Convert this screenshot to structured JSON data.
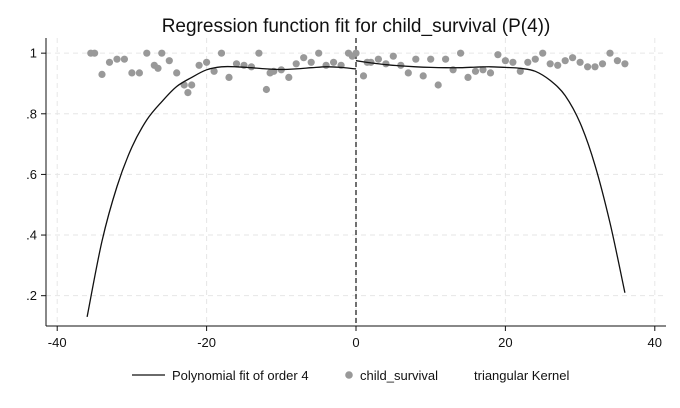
{
  "chart_data": {
    "type": "scatter",
    "title": "Regression function fit for child_survival (P(4))",
    "xlabel": "",
    "ylabel": "",
    "xlim": [
      -41.5,
      41.5
    ],
    "ylim": [
      0.1,
      1.05
    ],
    "xticks": [
      -40,
      -20,
      0,
      20,
      40
    ],
    "yticks": [
      0.2,
      0.4,
      0.6,
      0.8,
      1
    ],
    "ytick_labels": [
      ".2",
      ".4",
      ".6",
      ".8",
      "1"
    ],
    "grid": true,
    "cutoff": 0,
    "legend_position": "bottom",
    "colors": {
      "points": "#999999",
      "fit": "#111111",
      "grid": "#e6e6e6",
      "axis": "#111111"
    },
    "series": [
      {
        "name": "child_survival",
        "kind": "points",
        "x": [
          -35.5,
          -35,
          -34,
          -33,
          -32,
          -31,
          -30,
          -29,
          -28,
          -27,
          -26.5,
          -26,
          -25,
          -24,
          -23,
          -22.5,
          -22,
          -21,
          -20,
          -19,
          -18,
          -17,
          -16,
          -15,
          -14,
          -13,
          -12,
          -11.5,
          -11,
          -10,
          -9,
          -8,
          -7,
          -6,
          -5,
          -4,
          -3,
          -2,
          -1,
          0,
          -0.5,
          1,
          1.5,
          2,
          3,
          4,
          5,
          6,
          7,
          8,
          9,
          10,
          11,
          12,
          13,
          14,
          15,
          16,
          17,
          18,
          19,
          20,
          21,
          22,
          23,
          24,
          25,
          26,
          27,
          28,
          29,
          30,
          31,
          32,
          33,
          34,
          35,
          36
        ],
        "y": [
          1.0,
          1.0,
          0.93,
          0.97,
          0.98,
          0.98,
          0.935,
          0.935,
          1.0,
          0.96,
          0.95,
          1.0,
          0.975,
          0.935,
          0.895,
          0.87,
          0.895,
          0.96,
          0.97,
          0.94,
          1.0,
          0.92,
          0.965,
          0.96,
          0.955,
          1.0,
          0.88,
          0.935,
          0.94,
          0.945,
          0.92,
          0.965,
          0.985,
          0.97,
          1.0,
          0.96,
          0.97,
          0.96,
          1.0,
          1.0,
          0.99,
          0.925,
          0.97,
          0.97,
          0.98,
          0.965,
          0.99,
          0.96,
          0.935,
          0.98,
          0.925,
          0.98,
          0.895,
          0.98,
          0.945,
          1.0,
          0.92,
          0.94,
          0.945,
          0.935,
          0.995,
          0.975,
          0.97,
          0.94,
          0.97,
          0.98,
          1.0,
          0.965,
          0.96,
          0.975,
          0.985,
          0.97,
          0.955,
          0.955,
          0.965,
          1.0,
          0.975,
          0.965
        ]
      },
      {
        "name": "Polynomial fit of order 4",
        "kind": "line",
        "segments": [
          {
            "x": [
              -36,
              -34,
              -32,
              -30,
              -28,
              -26,
              -24,
              -22,
              -20,
              -18,
              -16,
              -14,
              -12,
              -10,
              -8,
              -6,
              -4,
              -2,
              0
            ],
            "y": [
              0.13,
              0.38,
              0.56,
              0.69,
              0.78,
              0.84,
              0.89,
              0.92,
              0.945,
              0.955,
              0.955,
              0.952,
              0.948,
              0.946,
              0.948,
              0.952,
              0.955,
              0.953,
              0.948
            ]
          },
          {
            "x": [
              0,
              2,
              4,
              6,
              8,
              10,
              12,
              14,
              16,
              18,
              20,
              22,
              24,
              26,
              28,
              30,
              32,
              34,
              36
            ],
            "y": [
              0.975,
              0.968,
              0.962,
              0.958,
              0.955,
              0.953,
              0.952,
              0.952,
              0.954,
              0.955,
              0.953,
              0.95,
              0.94,
              0.91,
              0.86,
              0.77,
              0.63,
              0.44,
              0.21
            ]
          }
        ]
      },
      {
        "name": "triangular Kernel",
        "kind": "kernel"
      }
    ]
  }
}
